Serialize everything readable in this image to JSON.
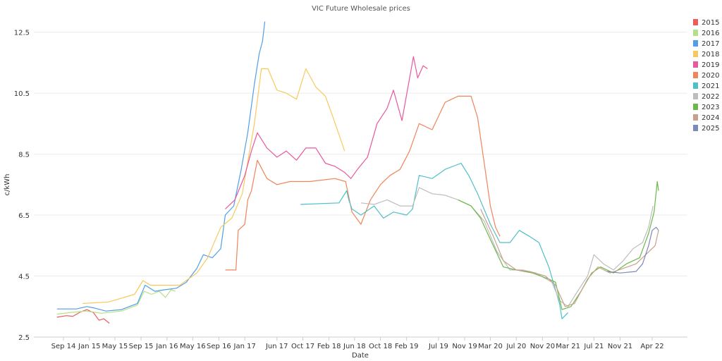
{
  "chart_data": {
    "type": "line",
    "title": "VIC Future Wholesale prices",
    "xlabel": "Date",
    "ylabel": "c/kWh",
    "x_ticks": [
      "Sep 14",
      "Jan 15",
      "May 15",
      "Sep 15",
      "Jan 16",
      "May 16",
      "Sep 16",
      "Jan 17",
      "Jun 17",
      "Oct 17",
      "Feb 18",
      "Jun 18",
      "Oct 18",
      "Feb 19",
      "Jul 19",
      "Nov 19",
      "Mar 20",
      "Jul 20",
      "Nov 20",
      "Mar 21",
      "Jul 21",
      "Nov 21",
      "Apr 22"
    ],
    "y_ticks": [
      "2.5",
      "4.5",
      "6.5",
      "8.5",
      "10.5",
      "12.5"
    ],
    "ylim": [
      2.5,
      13
    ],
    "grid": true,
    "legend_position": "top-right",
    "series": [
      {
        "name": "2015",
        "color": "#ef5a5a",
        "points": [
          [
            "2014-08-01",
            3.15
          ],
          [
            "2014-09-15",
            3.2
          ],
          [
            "2014-10-15",
            3.18
          ],
          [
            "2014-11-20",
            3.32
          ],
          [
            "2014-12-20",
            3.4
          ],
          [
            "2015-01-20",
            3.3
          ],
          [
            "2015-02-15",
            3.05
          ],
          [
            "2015-03-10",
            3.1
          ],
          [
            "2015-04-05",
            2.95
          ]
        ]
      },
      {
        "name": "2016",
        "color": "#b5e08a",
        "points": [
          [
            "2014-08-01",
            3.25
          ],
          [
            "2014-10-01",
            3.3
          ],
          [
            "2014-12-15",
            3.35
          ],
          [
            "2015-03-01",
            3.28
          ],
          [
            "2015-06-01",
            3.35
          ],
          [
            "2015-08-15",
            3.55
          ],
          [
            "2015-09-15",
            4.0
          ],
          [
            "2015-10-20",
            3.9
          ],
          [
            "2015-11-25",
            4.0
          ],
          [
            "2015-12-25",
            3.8
          ],
          [
            "2016-01-20",
            4.05
          ],
          [
            "2016-02-10",
            4.0
          ]
        ]
      },
      {
        "name": "2017",
        "color": "#4f9fe6",
        "points": [
          [
            "2014-08-01",
            3.42
          ],
          [
            "2014-11-01",
            3.42
          ],
          [
            "2014-12-20",
            3.5
          ],
          [
            "2015-01-25",
            3.45
          ],
          [
            "2015-03-20",
            3.35
          ],
          [
            "2015-06-01",
            3.4
          ],
          [
            "2015-08-15",
            3.6
          ],
          [
            "2015-09-20",
            4.2
          ],
          [
            "2015-11-05",
            4.0
          ],
          [
            "2015-12-20",
            4.05
          ],
          [
            "2016-02-15",
            4.1
          ],
          [
            "2016-04-01",
            4.3
          ],
          [
            "2016-05-20",
            4.75
          ],
          [
            "2016-06-20",
            5.2
          ],
          [
            "2016-08-01",
            5.1
          ],
          [
            "2016-09-10",
            5.4
          ],
          [
            "2016-10-01",
            6.5
          ],
          [
            "2016-11-10",
            6.8
          ],
          [
            "2016-12-15",
            8.0
          ],
          [
            "2017-01-15",
            9.2
          ],
          [
            "2017-02-15",
            10.8
          ],
          [
            "2017-03-10",
            11.8
          ],
          [
            "2017-03-25",
            12.2
          ],
          [
            "2017-04-05",
            12.85
          ]
        ]
      },
      {
        "name": "2018",
        "color": "#f7c95c",
        "points": [
          [
            "2014-12-01",
            3.6
          ],
          [
            "2015-04-01",
            3.65
          ],
          [
            "2015-08-01",
            3.9
          ],
          [
            "2015-09-10",
            4.35
          ],
          [
            "2015-10-15",
            4.2
          ],
          [
            "2016-03-01",
            4.2
          ],
          [
            "2016-05-20",
            4.6
          ],
          [
            "2016-07-10",
            5.1
          ],
          [
            "2016-09-10",
            6.1
          ],
          [
            "2016-11-01",
            6.4
          ],
          [
            "2016-12-20",
            7.2
          ],
          [
            "2017-02-15",
            9.5
          ],
          [
            "2017-03-20",
            11.3
          ],
          [
            "2017-04-20",
            11.3
          ],
          [
            "2017-06-01",
            10.6
          ],
          [
            "2017-07-15",
            10.5
          ],
          [
            "2017-09-01",
            10.3
          ],
          [
            "2017-10-15",
            11.3
          ],
          [
            "2017-12-01",
            10.7
          ],
          [
            "2018-01-15",
            10.4
          ],
          [
            "2018-02-20",
            9.7
          ],
          [
            "2018-04-01",
            8.9
          ],
          [
            "2018-04-15",
            8.6
          ]
        ]
      },
      {
        "name": "2019",
        "color": "#e8589d",
        "points": [
          [
            "2016-10-01",
            6.7
          ],
          [
            "2016-11-15",
            7.0
          ],
          [
            "2017-01-01",
            7.8
          ],
          [
            "2017-02-01",
            8.6
          ],
          [
            "2017-03-01",
            9.2
          ],
          [
            "2017-04-15",
            8.7
          ],
          [
            "2017-06-01",
            8.4
          ],
          [
            "2017-07-15",
            8.6
          ],
          [
            "2017-09-01",
            8.3
          ],
          [
            "2017-10-15",
            8.7
          ],
          [
            "2017-12-01",
            8.7
          ],
          [
            "2018-01-15",
            8.2
          ],
          [
            "2018-03-01",
            8.1
          ],
          [
            "2018-04-15",
            7.9
          ],
          [
            "2018-05-15",
            7.7
          ],
          [
            "2018-06-15",
            8.0
          ],
          [
            "2018-08-01",
            8.4
          ],
          [
            "2018-09-15",
            9.5
          ],
          [
            "2018-11-01",
            10.0
          ],
          [
            "2018-12-01",
            10.6
          ],
          [
            "2019-01-10",
            9.6
          ],
          [
            "2019-02-10",
            10.8
          ],
          [
            "2019-03-05",
            11.7
          ],
          [
            "2019-03-25",
            11.0
          ],
          [
            "2019-04-20",
            11.4
          ],
          [
            "2019-05-10",
            11.3
          ]
        ]
      },
      {
        "name": "2020",
        "color": "#f1845a",
        "points": [
          [
            "2016-10-01",
            4.7
          ],
          [
            "2016-11-20",
            4.7
          ],
          [
            "2016-12-01",
            6.0
          ],
          [
            "2017-01-01",
            6.2
          ],
          [
            "2017-01-15",
            7.0
          ],
          [
            "2017-02-01",
            7.3
          ],
          [
            "2017-03-01",
            8.3
          ],
          [
            "2017-04-15",
            7.7
          ],
          [
            "2017-06-01",
            7.5
          ],
          [
            "2017-08-01",
            7.6
          ],
          [
            "2017-11-01",
            7.6
          ],
          [
            "2018-03-01",
            7.7
          ],
          [
            "2018-04-20",
            7.6
          ],
          [
            "2018-05-20",
            6.6
          ],
          [
            "2018-07-01",
            6.2
          ],
          [
            "2018-08-15",
            7.0
          ],
          [
            "2018-10-01",
            7.5
          ],
          [
            "2018-11-15",
            7.8
          ],
          [
            "2019-01-01",
            8.0
          ],
          [
            "2019-02-15",
            8.6
          ],
          [
            "2019-04-01",
            9.5
          ],
          [
            "2019-06-01",
            9.3
          ],
          [
            "2019-08-01",
            10.2
          ],
          [
            "2019-10-01",
            10.4
          ],
          [
            "2019-12-01",
            10.4
          ],
          [
            "2020-01-01",
            9.7
          ],
          [
            "2020-02-01",
            8.2
          ],
          [
            "2020-03-01",
            6.8
          ],
          [
            "2020-03-25",
            6.1
          ],
          [
            "2020-04-15",
            5.8
          ]
        ]
      },
      {
        "name": "2021",
        "color": "#4fc0c8",
        "points": [
          [
            "2017-09-20",
            6.85
          ],
          [
            "2018-03-20",
            6.9
          ],
          [
            "2018-04-25",
            7.3
          ],
          [
            "2018-05-05",
            7.0
          ],
          [
            "2018-05-20",
            6.7
          ],
          [
            "2018-07-01",
            6.5
          ],
          [
            "2018-09-01",
            6.8
          ],
          [
            "2018-10-15",
            6.4
          ],
          [
            "2018-12-01",
            6.6
          ],
          [
            "2019-02-01",
            6.5
          ],
          [
            "2019-03-01",
            6.7
          ],
          [
            "2019-04-01",
            7.8
          ],
          [
            "2019-06-01",
            7.7
          ],
          [
            "2019-08-01",
            8.0
          ],
          [
            "2019-10-15",
            8.2
          ],
          [
            "2019-11-20",
            7.8
          ],
          [
            "2020-01-01",
            7.2
          ],
          [
            "2020-03-01",
            6.2
          ],
          [
            "2020-04-15",
            5.6
          ],
          [
            "2020-06-01",
            5.6
          ],
          [
            "2020-07-15",
            6.0
          ],
          [
            "2020-09-01",
            5.8
          ],
          [
            "2020-10-15",
            5.6
          ],
          [
            "2020-12-01",
            4.8
          ],
          [
            "2021-01-20",
            3.6
          ],
          [
            "2021-02-01",
            3.1
          ],
          [
            "2021-03-01",
            3.3
          ]
        ]
      },
      {
        "name": "2022",
        "color": "#bdbdbd",
        "points": [
          [
            "2018-07-01",
            6.9
          ],
          [
            "2018-09-01",
            6.85
          ],
          [
            "2018-11-01",
            7.0
          ],
          [
            "2019-01-01",
            6.8
          ],
          [
            "2019-03-01",
            6.8
          ],
          [
            "2019-04-01",
            7.4
          ],
          [
            "2019-06-01",
            7.2
          ],
          [
            "2019-08-01",
            7.15
          ],
          [
            "2019-10-01",
            7.0
          ],
          [
            "2019-12-01",
            6.8
          ],
          [
            "2020-02-01",
            6.3
          ],
          [
            "2020-04-01",
            5.3
          ],
          [
            "2020-06-01",
            4.7
          ],
          [
            "2020-08-01",
            4.7
          ],
          [
            "2020-10-01",
            4.6
          ],
          [
            "2020-12-15",
            4.3
          ],
          [
            "2021-01-20",
            3.7
          ],
          [
            "2021-03-01",
            3.5
          ],
          [
            "2021-04-15",
            4.0
          ],
          [
            "2021-06-01",
            4.5
          ],
          [
            "2021-07-01",
            5.2
          ],
          [
            "2021-08-15",
            4.9
          ],
          [
            "2021-10-01",
            4.7
          ],
          [
            "2021-11-15",
            5.0
          ],
          [
            "2022-01-01",
            5.4
          ],
          [
            "2022-02-15",
            5.6
          ],
          [
            "2022-03-15",
            6.1
          ],
          [
            "2022-04-05",
            6.8
          ]
        ]
      },
      {
        "name": "2023",
        "color": "#6cb84a",
        "points": [
          [
            "2019-10-01",
            7.0
          ],
          [
            "2019-12-01",
            6.8
          ],
          [
            "2020-01-15",
            6.4
          ],
          [
            "2020-03-01",
            5.7
          ],
          [
            "2020-05-01",
            4.8
          ],
          [
            "2020-07-01",
            4.7
          ],
          [
            "2020-09-15",
            4.6
          ],
          [
            "2020-12-01",
            4.4
          ],
          [
            "2021-01-01",
            4.3
          ],
          [
            "2021-02-01",
            3.4
          ],
          [
            "2021-03-15",
            3.5
          ],
          [
            "2021-05-01",
            4.0
          ],
          [
            "2021-06-20",
            4.6
          ],
          [
            "2021-08-01",
            4.8
          ],
          [
            "2021-10-01",
            4.6
          ],
          [
            "2021-12-01",
            4.9
          ],
          [
            "2022-02-01",
            5.1
          ],
          [
            "2022-03-15",
            5.9
          ],
          [
            "2022-04-10",
            6.6
          ],
          [
            "2022-04-25",
            7.6
          ],
          [
            "2022-05-01",
            7.3
          ]
        ]
      },
      {
        "name": "2024",
        "color": "#c9a08d",
        "points": [
          [
            "2020-01-15",
            6.7
          ],
          [
            "2020-03-15",
            5.8
          ],
          [
            "2020-05-01",
            5.0
          ],
          [
            "2020-07-01",
            4.7
          ],
          [
            "2020-09-01",
            4.65
          ],
          [
            "2020-11-15",
            4.5
          ],
          [
            "2021-01-01",
            4.2
          ],
          [
            "2021-02-15",
            3.5
          ],
          [
            "2021-04-01",
            3.6
          ],
          [
            "2021-06-01",
            4.4
          ],
          [
            "2021-07-20",
            4.8
          ],
          [
            "2021-09-15",
            4.6
          ],
          [
            "2021-11-15",
            4.75
          ],
          [
            "2022-01-15",
            4.9
          ],
          [
            "2022-03-01",
            5.2
          ],
          [
            "2022-04-15",
            5.5
          ],
          [
            "2022-05-01",
            6.0
          ]
        ]
      },
      {
        "name": "2025",
        "color": "#7b8ab8",
        "points": [
          [
            "2021-09-01",
            4.65
          ],
          [
            "2021-11-01",
            4.6
          ],
          [
            "2022-01-15",
            4.65
          ],
          [
            "2022-02-15",
            4.9
          ],
          [
            "2022-03-15",
            5.5
          ],
          [
            "2022-04-01",
            6.0
          ],
          [
            "2022-04-20",
            6.1
          ],
          [
            "2022-05-01",
            6.0
          ]
        ]
      }
    ]
  }
}
